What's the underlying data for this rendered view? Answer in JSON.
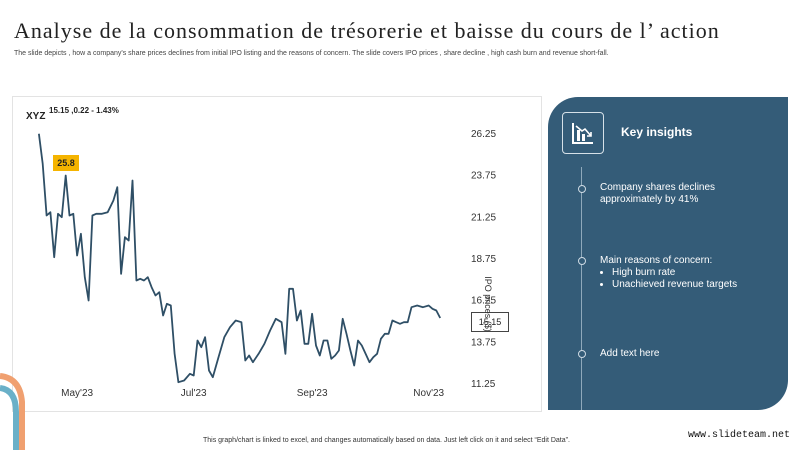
{
  "header": {
    "title": "Analyse de la consommation de trésorerie et baisse du cours de l’ action",
    "subtitle": "The slide depicts , how a company's share prices declines from initial IPO listing and the reasons of concern. The slide covers IPO prices , share decline , high cash burn and revenue short-fall."
  },
  "chart_data": {
    "type": "line",
    "ticker": "XYZ",
    "ticker_info": "15.15 ,0.22 - 1.43%",
    "ipo_badge": "25.8",
    "last_value_label": "15.15",
    "ylabel": "IPO prices ($)",
    "ylim": [
      11.25,
      26.25
    ],
    "yticks": [
      "26.25",
      "23.75",
      "21.25",
      "18.75",
      "16.25",
      "13.75",
      "11.25"
    ],
    "xlim": [
      "2023-04-10",
      "2023-11-20"
    ],
    "xticks": [
      {
        "label": "May'23",
        "date": "2023-05-01"
      },
      {
        "label": "Jul'23",
        "date": "2023-07-01"
      },
      {
        "label": "Sep'23",
        "date": "2023-09-01"
      },
      {
        "label": "Nov'23",
        "date": "2023-11-01"
      }
    ],
    "series": [
      {
        "points": [
          [
            "2023-04-11",
            26.2
          ],
          [
            "2023-04-13",
            24.4
          ],
          [
            "2023-04-15",
            21.3
          ],
          [
            "2023-04-17",
            21.5
          ],
          [
            "2023-04-19",
            18.8
          ],
          [
            "2023-04-21",
            21.4
          ],
          [
            "2023-04-23",
            21.2
          ],
          [
            "2023-04-25",
            23.7
          ],
          [
            "2023-04-27",
            21.3
          ],
          [
            "2023-04-29",
            21.4
          ],
          [
            "2023-05-01",
            18.9
          ],
          [
            "2023-05-03",
            20.2
          ],
          [
            "2023-05-05",
            17.6
          ],
          [
            "2023-05-07",
            16.2
          ],
          [
            "2023-05-09",
            21.3
          ],
          [
            "2023-05-11",
            21.4
          ],
          [
            "2023-05-14",
            21.4
          ],
          [
            "2023-05-17",
            21.5
          ],
          [
            "2023-05-20",
            22.2
          ],
          [
            "2023-05-22",
            23.0
          ],
          [
            "2023-05-24",
            17.8
          ],
          [
            "2023-05-26",
            20.0
          ],
          [
            "2023-05-28",
            19.8
          ],
          [
            "2023-05-30",
            23.4
          ],
          [
            "2023-06-01",
            17.4
          ],
          [
            "2023-06-03",
            17.5
          ],
          [
            "2023-06-05",
            17.4
          ],
          [
            "2023-06-07",
            17.6
          ],
          [
            "2023-06-09",
            17.0
          ],
          [
            "2023-06-11",
            16.5
          ],
          [
            "2023-06-13",
            16.7
          ],
          [
            "2023-06-15",
            15.3
          ],
          [
            "2023-06-17",
            16.0
          ],
          [
            "2023-06-19",
            15.9
          ],
          [
            "2023-06-21",
            13.0
          ],
          [
            "2023-06-23",
            11.3
          ],
          [
            "2023-06-26",
            11.4
          ],
          [
            "2023-06-29",
            11.8
          ],
          [
            "2023-07-01",
            11.7
          ],
          [
            "2023-07-03",
            13.8
          ],
          [
            "2023-07-05",
            13.4
          ],
          [
            "2023-07-07",
            14.0
          ],
          [
            "2023-07-09",
            12.0
          ],
          [
            "2023-07-11",
            11.6
          ],
          [
            "2023-07-14",
            12.8
          ],
          [
            "2023-07-17",
            14.0
          ],
          [
            "2023-07-20",
            14.6
          ],
          [
            "2023-07-23",
            15.0
          ],
          [
            "2023-07-26",
            14.9
          ],
          [
            "2023-07-28",
            12.6
          ],
          [
            "2023-07-30",
            12.9
          ],
          [
            "2023-08-01",
            12.5
          ],
          [
            "2023-08-04",
            13.0
          ],
          [
            "2023-08-07",
            13.6
          ],
          [
            "2023-08-10",
            14.4
          ],
          [
            "2023-08-13",
            15.1
          ],
          [
            "2023-08-16",
            14.9
          ],
          [
            "2023-08-18",
            13.0
          ],
          [
            "2023-08-20",
            16.9
          ],
          [
            "2023-08-22",
            16.9
          ],
          [
            "2023-08-24",
            15.0
          ],
          [
            "2023-08-26",
            15.6
          ],
          [
            "2023-08-28",
            13.6
          ],
          [
            "2023-08-30",
            13.6
          ],
          [
            "2023-09-01",
            15.4
          ],
          [
            "2023-09-03",
            13.5
          ],
          [
            "2023-09-05",
            12.9
          ],
          [
            "2023-09-07",
            13.8
          ],
          [
            "2023-09-09",
            13.8
          ],
          [
            "2023-09-11",
            12.7
          ],
          [
            "2023-09-13",
            12.9
          ],
          [
            "2023-09-15",
            13.2
          ],
          [
            "2023-09-17",
            15.1
          ],
          [
            "2023-09-19",
            14.2
          ],
          [
            "2023-09-21",
            13.2
          ],
          [
            "2023-09-23",
            12.3
          ],
          [
            "2023-09-25",
            13.8
          ],
          [
            "2023-09-27",
            13.5
          ],
          [
            "2023-09-29",
            13.0
          ],
          [
            "2023-10-01",
            12.5
          ],
          [
            "2023-10-03",
            12.8
          ],
          [
            "2023-10-05",
            13.0
          ],
          [
            "2023-10-07",
            13.9
          ],
          [
            "2023-10-09",
            14.2
          ],
          [
            "2023-10-11",
            14.2
          ],
          [
            "2023-10-13",
            15.0
          ],
          [
            "2023-10-15",
            14.9
          ],
          [
            "2023-10-17",
            14.8
          ],
          [
            "2023-10-19",
            14.9
          ],
          [
            "2023-10-21",
            14.9
          ],
          [
            "2023-10-23",
            15.8
          ],
          [
            "2023-10-26",
            15.9
          ],
          [
            "2023-10-29",
            15.8
          ],
          [
            "2023-11-01",
            15.9
          ],
          [
            "2023-11-03",
            15.7
          ],
          [
            "2023-11-05",
            15.6
          ],
          [
            "2023-11-07",
            15.15
          ]
        ]
      }
    ],
    "grid": false,
    "colors": {
      "line": "#2f4f66",
      "badge": "#f5b400",
      "panel": "#345c78"
    }
  },
  "insights_panel": {
    "title": "Key insights",
    "icon": "declining-chart-icon",
    "items": [
      {
        "text": "Company shares declines approximately by 41%"
      },
      {
        "text": "Main reasons of concern:",
        "bullets": [
          "High burn rate",
          "Unachieved revenue targets"
        ]
      },
      {
        "text": "Add text here"
      }
    ]
  },
  "footer": {
    "note": "This graph/chart is linked to excel, and changes automatically based on data. Just left click on it and select “Edit Data”.",
    "watermark": "www.slideteam.net"
  }
}
